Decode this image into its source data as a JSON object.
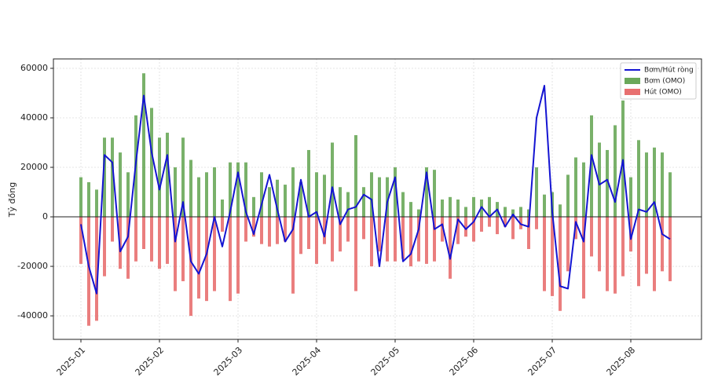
{
  "chart_data": {
    "type": "bar_line",
    "y_label": "Tỷ đồng",
    "categories": [
      "2025-01",
      null,
      null,
      null,
      null,
      null,
      null,
      null,
      null,
      null,
      "2025-02",
      null,
      null,
      null,
      null,
      null,
      null,
      null,
      null,
      null,
      "2025-03",
      null,
      null,
      null,
      null,
      null,
      null,
      null,
      null,
      null,
      "2025-04",
      null,
      null,
      null,
      null,
      null,
      null,
      null,
      null,
      null,
      "2025-05",
      null,
      null,
      null,
      null,
      null,
      null,
      null,
      null,
      null,
      "2025-06",
      null,
      null,
      null,
      null,
      null,
      null,
      null,
      null,
      null,
      "2025-07",
      null,
      null,
      null,
      null,
      null,
      null,
      null,
      null,
      null,
      "2025-08",
      null,
      null,
      null,
      null,
      null
    ],
    "series": [
      {
        "name": "Bơm/Hút ròng",
        "type": "line",
        "color": "#1414d2",
        "values": [
          -3000,
          -20000,
          -31000,
          25000,
          22000,
          -14000,
          -8000,
          22000,
          49000,
          26000,
          11000,
          25000,
          -10000,
          6000,
          -18000,
          -23000,
          -15000,
          0,
          -12000,
          2000,
          18000,
          2000,
          -7000,
          5000,
          17000,
          3000,
          -10000,
          -5000,
          15000,
          0,
          2000,
          -8000,
          12000,
          -3000,
          3000,
          4000,
          9000,
          7000,
          -20000,
          6000,
          16000,
          -18000,
          -15000,
          -5000,
          18000,
          -5000,
          -3000,
          -17000,
          -1000,
          -5000,
          -2000,
          4000,
          0,
          3000,
          -4000,
          1000,
          -3000,
          -4000,
          40000,
          53000,
          2000,
          -28000,
          -29000,
          -2000,
          -10000,
          25000,
          13000,
          15000,
          6000,
          23000,
          -9000,
          3000,
          2000,
          6000,
          -7000,
          -9000
        ]
      },
      {
        "name": "Bơm (OMO)",
        "type": "bar",
        "color": "#6aa85a",
        "values": [
          16000,
          14000,
          11000,
          32000,
          32000,
          26000,
          18000,
          41000,
          58000,
          44000,
          32000,
          34000,
          20000,
          32000,
          23000,
          16000,
          18000,
          20000,
          7000,
          22000,
          22000,
          22000,
          8000,
          18000,
          12000,
          15000,
          13000,
          20000,
          14000,
          27000,
          18000,
          17000,
          30000,
          12000,
          10000,
          33000,
          12000,
          18000,
          16000,
          16000,
          20000,
          10000,
          6000,
          3000,
          20000,
          19000,
          7000,
          8000,
          7000,
          4000,
          8000,
          7000,
          8000,
          6000,
          4000,
          3000,
          4000,
          3000,
          20000,
          9000,
          10000,
          5000,
          17000,
          24000,
          22000,
          41000,
          30000,
          27000,
          37000,
          47000,
          16000,
          31000,
          26000,
          28000,
          26000,
          18000
        ]
      },
      {
        "name": "Hút (OMO)",
        "type": "bar",
        "color": "#e87070",
        "values": [
          -19000,
          -44000,
          -42000,
          -24000,
          -10000,
          -21000,
          -25000,
          -18000,
          -13000,
          -18000,
          -21000,
          -19000,
          -30000,
          -26000,
          -40000,
          -33000,
          -34000,
          -30000,
          -6000,
          -34000,
          -31000,
          -10000,
          -8000,
          -11000,
          -12000,
          -11000,
          -10000,
          -31000,
          -15000,
          -13000,
          -19000,
          -11000,
          -18000,
          -14000,
          -10000,
          -30000,
          -9000,
          -20000,
          -14000,
          -18000,
          -18000,
          -17000,
          -20000,
          -18000,
          -19000,
          -18000,
          -10000,
          -25000,
          -11000,
          -8000,
          -10000,
          -6000,
          -4000,
          -7000,
          -4000,
          -9000,
          -5000,
          -13000,
          -5000,
          -30000,
          -32000,
          -38000,
          -22000,
          -9000,
          -33000,
          -16000,
          -22000,
          -30000,
          -31000,
          -24000,
          -14000,
          -28000,
          -23000,
          -30000,
          -22000,
          -26000
        ]
      }
    ],
    "ylim": [
      -49500,
      63800
    ],
    "yticks": [
      -40000,
      -20000,
      0,
      20000,
      40000,
      60000
    ],
    "grid": true,
    "legend": "upper right"
  }
}
